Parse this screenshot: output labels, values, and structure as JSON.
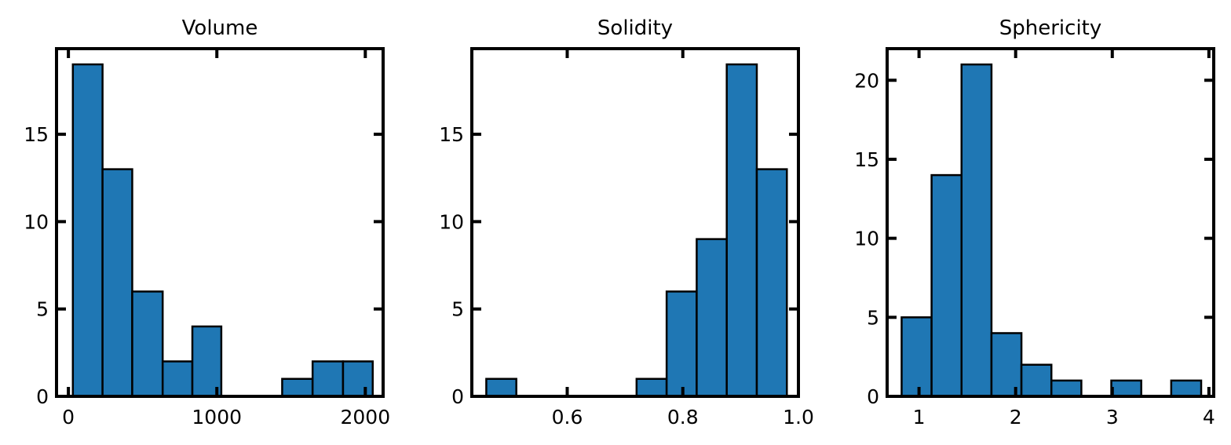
{
  "chart_data": [
    {
      "type": "bar",
      "title": "Volume",
      "xlabel": "",
      "ylabel": "",
      "xlim": [
        -80,
        2120
      ],
      "ylim": [
        0,
        19.9
      ],
      "xticks": [
        0,
        1000,
        2000
      ],
      "yticks": [
        0,
        5,
        10,
        15
      ],
      "bins": [
        {
          "x0": 30,
          "x1": 230,
          "count": 19
        },
        {
          "x0": 230,
          "x1": 430,
          "count": 13
        },
        {
          "x0": 430,
          "x1": 635,
          "count": 6
        },
        {
          "x0": 635,
          "x1": 835,
          "count": 2
        },
        {
          "x0": 835,
          "x1": 1030,
          "count": 4
        },
        {
          "x0": 1030,
          "x1": 1240,
          "count": 0
        },
        {
          "x0": 1240,
          "x1": 1440,
          "count": 0
        },
        {
          "x0": 1440,
          "x1": 1645,
          "count": 1
        },
        {
          "x0": 1645,
          "x1": 1850,
          "count": 2
        },
        {
          "x0": 1850,
          "x1": 2050,
          "count": 2
        }
      ],
      "bar_color": "#1f77b4"
    },
    {
      "type": "bar",
      "title": "Solidity",
      "xlabel": "",
      "ylabel": "",
      "xlim": [
        0.435,
        1.0
      ],
      "ylim": [
        0,
        19.9
      ],
      "xticks": [
        0.6,
        0.8,
        1.0
      ],
      "xtick_labels": [
        "0.6",
        "0.8",
        "1.0"
      ],
      "yticks": [
        0,
        5,
        10,
        15
      ],
      "bins": [
        {
          "x0": 0.46,
          "x1": 0.512,
          "count": 1
        },
        {
          "x0": 0.512,
          "x1": 0.564,
          "count": 0
        },
        {
          "x0": 0.564,
          "x1": 0.616,
          "count": 0
        },
        {
          "x0": 0.616,
          "x1": 0.668,
          "count": 0
        },
        {
          "x0": 0.668,
          "x1": 0.72,
          "count": 0
        },
        {
          "x0": 0.72,
          "x1": 0.772,
          "count": 1
        },
        {
          "x0": 0.772,
          "x1": 0.824,
          "count": 6
        },
        {
          "x0": 0.824,
          "x1": 0.876,
          "count": 9
        },
        {
          "x0": 0.876,
          "x1": 0.928,
          "count": 19
        },
        {
          "x0": 0.928,
          "x1": 0.98,
          "count": 13
        }
      ],
      "bar_color": "#1f77b4"
    },
    {
      "type": "bar",
      "title": "Sphericity",
      "xlabel": "",
      "ylabel": "",
      "xlim": [
        0.67,
        4.05
      ],
      "ylim": [
        0,
        22
      ],
      "xticks": [
        1,
        2,
        3,
        4
      ],
      "yticks": [
        0,
        5,
        10,
        15,
        20
      ],
      "bins": [
        {
          "x0": 0.82,
          "x1": 1.13,
          "count": 5
        },
        {
          "x0": 1.13,
          "x1": 1.44,
          "count": 14
        },
        {
          "x0": 1.44,
          "x1": 1.75,
          "count": 21
        },
        {
          "x0": 1.75,
          "x1": 2.06,
          "count": 4
        },
        {
          "x0": 2.06,
          "x1": 2.37,
          "count": 2
        },
        {
          "x0": 2.37,
          "x1": 2.68,
          "count": 1
        },
        {
          "x0": 2.68,
          "x1": 2.99,
          "count": 0
        },
        {
          "x0": 2.99,
          "x1": 3.3,
          "count": 1
        },
        {
          "x0": 3.3,
          "x1": 3.61,
          "count": 0
        },
        {
          "x0": 3.61,
          "x1": 3.92,
          "count": 1
        }
      ],
      "bar_color": "#1f77b4"
    }
  ]
}
